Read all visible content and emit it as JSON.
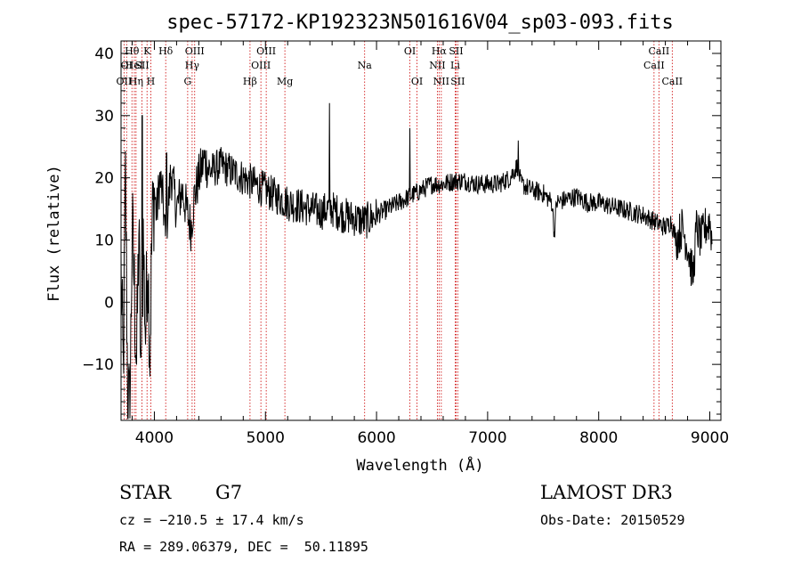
{
  "chart_data": {
    "type": "line",
    "title": "spec-57172-KP192323N501616V04_sp03-093.fits",
    "xlabel": "Wavelength (Å)",
    "ylabel": "Flux (relative)",
    "xlim": [
      3700,
      9100
    ],
    "ylim": [
      -19,
      42
    ],
    "xticks": [
      4000,
      5000,
      6000,
      7000,
      8000,
      9000
    ],
    "yticks": [
      -10,
      0,
      10,
      20,
      30,
      40
    ],
    "xtick_labels": [
      "4000",
      "5000",
      "6000",
      "7000",
      "8000",
      "9000"
    ],
    "ytick_labels": [
      "−10",
      "0",
      "10",
      "20",
      "30",
      "40"
    ],
    "lines": [
      {
        "w": 3727,
        "label": "OII",
        "row": 3
      },
      {
        "w": 3750,
        "label": "OI",
        "row": 2
      },
      {
        "w": 3798,
        "label": "Hθ",
        "row": 1
      },
      {
        "w": 3820,
        "label": "HeI",
        "row": 2
      },
      {
        "w": 3835,
        "label": "Hη",
        "row": 3
      },
      {
        "w": 3889,
        "label": "SII",
        "row": 2
      },
      {
        "w": 3934,
        "label": "K",
        "row": 1
      },
      {
        "w": 3968,
        "label": "H",
        "row": 3
      },
      {
        "w": 4102,
        "label": "Hδ",
        "row": 1
      },
      {
        "w": 4300,
        "label": "G",
        "row": 3
      },
      {
        "w": 4340,
        "label": "Hγ",
        "row": 2
      },
      {
        "w": 4363,
        "label": "OIII",
        "row": 1
      },
      {
        "w": 4861,
        "label": "Hβ",
        "row": 3
      },
      {
        "w": 4959,
        "label": "OIII",
        "row": 2
      },
      {
        "w": 5007,
        "label": "OIII",
        "row": 1
      },
      {
        "w": 5175,
        "label": "Mg",
        "row": 3
      },
      {
        "w": 5893,
        "label": "Na",
        "row": 2
      },
      {
        "w": 6300,
        "label": "OI",
        "row": 1
      },
      {
        "w": 6364,
        "label": "OI",
        "row": 3
      },
      {
        "w": 6548,
        "label": "NII",
        "row": 2
      },
      {
        "w": 6563,
        "label": "Hα",
        "row": 1
      },
      {
        "w": 6583,
        "label": "NII",
        "row": 3
      },
      {
        "w": 6708,
        "label": "Li",
        "row": 2
      },
      {
        "w": 6716,
        "label": "SII",
        "row": 1
      },
      {
        "w": 6731,
        "label": "SII",
        "row": 3
      },
      {
        "w": 8498,
        "label": "CaII",
        "row": 2
      },
      {
        "w": 8542,
        "label": "CaII",
        "row": 1
      },
      {
        "w": 8662,
        "label": "CaII",
        "row": 3
      }
    ],
    "spectrum_anchors": [
      [
        3700,
        5
      ],
      [
        3720,
        -12
      ],
      [
        3740,
        20
      ],
      [
        3760,
        -15
      ],
      [
        3780,
        -18
      ],
      [
        3800,
        12
      ],
      [
        3820,
        2
      ],
      [
        3840,
        -10
      ],
      [
        3860,
        12
      ],
      [
        3880,
        -15
      ],
      [
        3900,
        10
      ],
      [
        3920,
        -5
      ],
      [
        3940,
        8
      ],
      [
        3960,
        -8
      ],
      [
        3980,
        12
      ],
      [
        4000,
        18
      ],
      [
        4020,
        14
      ],
      [
        4050,
        20
      ],
      [
        4080,
        16
      ],
      [
        4100,
        10
      ],
      [
        4150,
        21
      ],
      [
        4200,
        15
      ],
      [
        4250,
        18
      ],
      [
        4300,
        14
      ],
      [
        4330,
        12
      ],
      [
        4360,
        17
      ],
      [
        4400,
        20
      ],
      [
        4450,
        23
      ],
      [
        4500,
        21
      ],
      [
        4600,
        22
      ],
      [
        4700,
        21
      ],
      [
        4800,
        20
      ],
      [
        4900,
        19
      ],
      [
        5000,
        18
      ],
      [
        5100,
        17
      ],
      [
        5200,
        16
      ],
      [
        5300,
        15.5
      ],
      [
        5400,
        15
      ],
      [
        5500,
        14.5
      ],
      [
        5560,
        15
      ],
      [
        5600,
        15
      ],
      [
        5700,
        14
      ],
      [
        5800,
        13.5
      ],
      [
        5900,
        13
      ],
      [
        6000,
        14
      ],
      [
        6100,
        15
      ],
      [
        6200,
        16
      ],
      [
        6300,
        17
      ],
      [
        6400,
        18
      ],
      [
        6500,
        19
      ],
      [
        6600,
        19
      ],
      [
        6700,
        19.5
      ],
      [
        6800,
        19.5
      ],
      [
        6900,
        19
      ],
      [
        7000,
        19
      ],
      [
        7100,
        19
      ],
      [
        7200,
        20
      ],
      [
        7270,
        22
      ],
      [
        7300,
        19
      ],
      [
        7400,
        18
      ],
      [
        7500,
        17.5
      ],
      [
        7580,
        16
      ],
      [
        7600,
        11
      ],
      [
        7620,
        16
      ],
      [
        7700,
        16.5
      ],
      [
        7800,
        17
      ],
      [
        7900,
        16
      ],
      [
        8000,
        16
      ],
      [
        8100,
        15.5
      ],
      [
        8200,
        15
      ],
      [
        8300,
        14.5
      ],
      [
        8400,
        14
      ],
      [
        8500,
        13
      ],
      [
        8600,
        12
      ],
      [
        8650,
        13
      ],
      [
        8700,
        10
      ],
      [
        8750,
        12
      ],
      [
        8800,
        9
      ],
      [
        8850,
        4
      ],
      [
        8880,
        12
      ],
      [
        8920,
        10
      ],
      [
        8960,
        12
      ],
      [
        9000,
        13
      ],
      [
        9020,
        10
      ]
    ],
    "spikes": [
      [
        5577,
        32
      ],
      [
        6300,
        28
      ],
      [
        3890,
        30
      ],
      [
        4110,
        24
      ],
      [
        7275,
        26
      ]
    ]
  },
  "info": {
    "object_type": "STAR",
    "subclass": "G7",
    "survey": "LAMOST DR3",
    "cz": "cz = −210.5 ± 17.4 km/s",
    "obs_date": "Obs-Date: 20150529",
    "coords": "RA = 289.06379, DEC =  50.11895"
  },
  "colors": {
    "line_marker": "#cc0000",
    "spectrum": "#000000",
    "axis": "#000000"
  }
}
